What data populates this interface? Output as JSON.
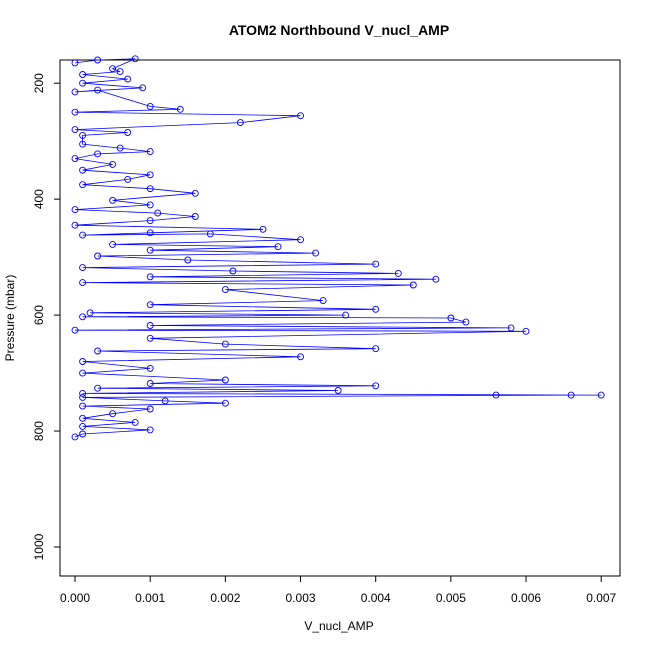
{
  "chart_data": {
    "type": "scatter",
    "title": "ATOM2 Northbound V_nucl_AMP",
    "xlabel": "V_nucl_AMP",
    "ylabel": "Pressure (mbar)",
    "xlim": [
      -0.0002,
      0.00725
    ],
    "ylim": [
      1050,
      160
    ],
    "y_reversed": true,
    "x_ticks": [
      0.0,
      0.001,
      0.002,
      0.003,
      0.004,
      0.005,
      0.006,
      0.007
    ],
    "x_tick_labels": [
      "0.000",
      "0.001",
      "0.002",
      "0.003",
      "0.004",
      "0.005",
      "0.006",
      "0.007"
    ],
    "y_ticks": [
      200,
      400,
      600,
      800,
      1000
    ],
    "y_tick_labels": [
      "200",
      "400",
      "600",
      "800",
      "1000"
    ],
    "grid": false,
    "legend": "none",
    "series": [
      {
        "color": "#0000ff",
        "marker": "open-circle",
        "line": true,
        "points": [
          [
            0.0,
            165
          ],
          [
            0.0003,
            160
          ],
          [
            0.0008,
            158
          ],
          [
            0.0005,
            175
          ],
          [
            0.0006,
            180
          ],
          [
            0.0001,
            185
          ],
          [
            0.0007,
            193
          ],
          [
            0.0001,
            200
          ],
          [
            0.0009,
            208
          ],
          [
            0.0,
            215
          ],
          [
            0.0003,
            212
          ],
          [
            0.001,
            240
          ],
          [
            0.0014,
            245
          ],
          [
            0.0,
            250
          ],
          [
            0.003,
            256
          ],
          [
            0.0022,
            268
          ],
          [
            0.0,
            280
          ],
          [
            0.0007,
            285
          ],
          [
            0.0001,
            290
          ],
          [
            0.0001,
            305
          ],
          [
            0.0006,
            312
          ],
          [
            0.001,
            318
          ],
          [
            0.0003,
            322
          ],
          [
            0.0,
            330
          ],
          [
            0.0005,
            340
          ],
          [
            0.0001,
            350
          ],
          [
            0.001,
            358
          ],
          [
            0.0007,
            366
          ],
          [
            0.0001,
            375
          ],
          [
            0.001,
            382
          ],
          [
            0.0016,
            390
          ],
          [
            0.0005,
            402
          ],
          [
            0.001,
            410
          ],
          [
            0.0,
            418
          ],
          [
            0.0011,
            424
          ],
          [
            0.0016,
            430
          ],
          [
            0.001,
            437
          ],
          [
            0.0,
            445
          ],
          [
            0.0025,
            452
          ],
          [
            0.001,
            458
          ],
          [
            0.0001,
            462
          ],
          [
            0.0018,
            460
          ],
          [
            0.003,
            470
          ],
          [
            0.0005,
            478
          ],
          [
            0.0027,
            482
          ],
          [
            0.001,
            488
          ],
          [
            0.0032,
            493
          ],
          [
            0.0003,
            498
          ],
          [
            0.0015,
            505
          ],
          [
            0.004,
            512
          ],
          [
            0.0001,
            518
          ],
          [
            0.0021,
            524
          ],
          [
            0.0043,
            528
          ],
          [
            0.001,
            534
          ],
          [
            0.0048,
            538
          ],
          [
            0.0001,
            544
          ],
          [
            0.0045,
            548
          ],
          [
            0.002,
            556
          ],
          [
            0.0033,
            575
          ],
          [
            0.001,
            582
          ],
          [
            0.004,
            590
          ],
          [
            0.0002,
            596
          ],
          [
            0.0036,
            600
          ],
          [
            0.0001,
            603
          ],
          [
            0.005,
            605
          ],
          [
            0.0052,
            612
          ],
          [
            0.001,
            618
          ],
          [
            0.0058,
            622
          ],
          [
            0.0,
            626
          ],
          [
            0.006,
            628
          ],
          [
            0.001,
            640
          ],
          [
            0.002,
            650
          ],
          [
            0.004,
            658
          ],
          [
            0.0003,
            662
          ],
          [
            0.003,
            672
          ],
          [
            0.0001,
            680
          ],
          [
            0.001,
            692
          ],
          [
            0.0001,
            700
          ],
          [
            0.002,
            712
          ],
          [
            0.001,
            718
          ],
          [
            0.004,
            722
          ],
          [
            0.0003,
            726
          ],
          [
            0.0035,
            730
          ],
          [
            0.0001,
            735
          ],
          [
            0.007,
            738
          ],
          [
            0.0056,
            738
          ],
          [
            0.0066,
            738
          ],
          [
            0.0001,
            742
          ],
          [
            0.0012,
            748
          ],
          [
            0.002,
            752
          ],
          [
            0.0001,
            757
          ],
          [
            0.001,
            762
          ],
          [
            0.0005,
            770
          ],
          [
            0.0001,
            778
          ],
          [
            0.0008,
            785
          ],
          [
            0.0001,
            792
          ],
          [
            0.001,
            798
          ],
          [
            0.0001,
            805
          ],
          [
            0.0,
            810
          ]
        ]
      }
    ]
  }
}
